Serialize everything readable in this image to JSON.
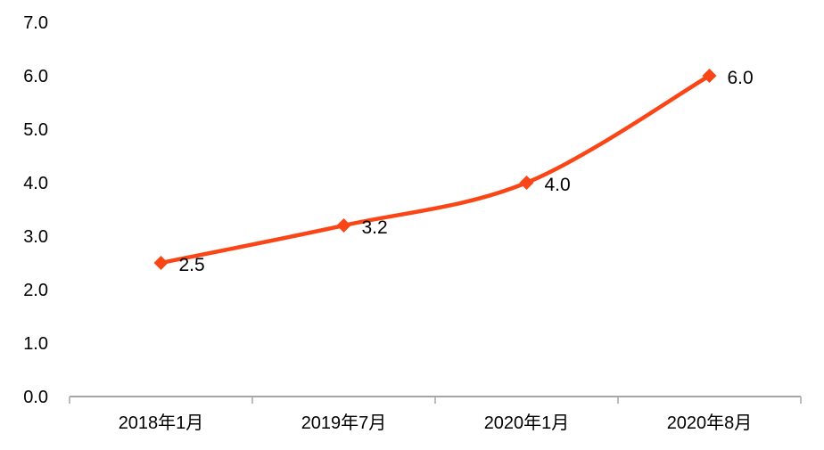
{
  "chart_data": {
    "type": "line",
    "title": "",
    "xlabel": "",
    "ylabel": "",
    "categories": [
      "2018年1月",
      "2019年7月",
      "2020年1月",
      "2020年8月"
    ],
    "series": [
      {
        "name": "series-1",
        "values": [
          2.5,
          3.2,
          4.0,
          6.0
        ],
        "data_labels": [
          "2.5",
          "3.2",
          "4.0",
          "6.0"
        ]
      }
    ],
    "ylim": [
      0,
      7
    ],
    "y_tick_step": 1,
    "y_tick_labels": [
      "0.0",
      "1.0",
      "2.0",
      "3.0",
      "4.0",
      "5.0",
      "6.0",
      "7.0"
    ],
    "grid": false,
    "legend": "none",
    "line_style": "smooth",
    "marker_shape": "diamond",
    "colors": {
      "line": "#FA4616",
      "marker": "#FA4616",
      "axis": "#A6A6A6",
      "text": "#000000"
    }
  }
}
